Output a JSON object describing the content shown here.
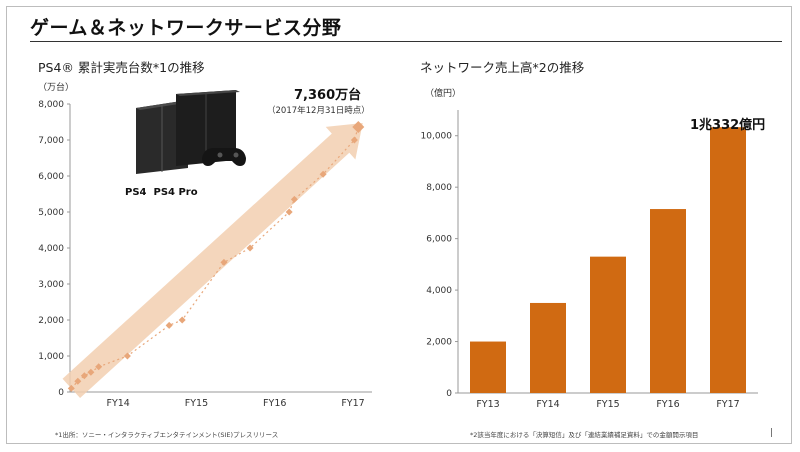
{
  "page": {
    "title": "ゲーム＆ネットワークサービス分野"
  },
  "left_chart": {
    "title": "PS4® 累計実売台数*1の推移",
    "unit": "（万台）",
    "annotation_value": "7,360万台",
    "annotation_date": "（2017年12月31日時点）",
    "footnote": "*1出所：ソニー・インタラクティブエンタテインメント(SIE)プレスリリース",
    "logos": [
      "PS4",
      "PS4 Pro"
    ]
  },
  "right_chart": {
    "title": "ネットワーク売上高*2の推移",
    "unit": "（億円）",
    "annotation_value": "1兆332億円",
    "footnote": "*2該当年度における「決算短信」及び「連結業績補足資料」での金額開示項目"
  },
  "colors": {
    "bar": "#d06a12",
    "arrow": "#f2cfb0",
    "points": "#e8a77a"
  },
  "chart_data": [
    {
      "type": "line",
      "title": "PS4® 累計実売台数*1の推移",
      "ylabel": "万台",
      "ylim": [
        0,
        8000
      ],
      "yticks": [
        0,
        1000,
        2000,
        3000,
        4000,
        5000,
        6000,
        7000,
        8000
      ],
      "ytick_labels": [
        "0",
        "1,000",
        "2,000",
        "3,000",
        "4,000",
        "5,000",
        "6,000",
        "7,000",
        "8,000"
      ],
      "xlim": [
        0,
        11
      ],
      "x_tick_positions": [
        2,
        5,
        8,
        11
      ],
      "categories": [
        "FY14",
        "FY15",
        "FY16",
        "FY17"
      ],
      "grid": false,
      "series": [
        {
          "values": [
            {
              "x": 0.05,
              "y": 100
            },
            {
              "x": 0.3,
              "y": 300
            },
            {
              "x": 0.55,
              "y": 450
            },
            {
              "x": 0.8,
              "y": 550
            },
            {
              "x": 1.1,
              "y": 700
            },
            {
              "x": 2.2,
              "y": 1000
            },
            {
              "x": 3.8,
              "y": 1850
            },
            {
              "x": 4.3,
              "y": 2000
            },
            {
              "x": 5.9,
              "y": 3600
            },
            {
              "x": 6.9,
              "y": 4000
            },
            {
              "x": 8.4,
              "y": 5000
            },
            {
              "x": 8.6,
              "y": 5350
            },
            {
              "x": 9.7,
              "y": 6050
            },
            {
              "x": 10.9,
              "y": 7000
            },
            {
              "x": 11.05,
              "y": 7360
            }
          ]
        }
      ]
    },
    {
      "type": "bar",
      "title": "ネットワーク売上高*2の推移",
      "ylabel": "億円",
      "ylim": [
        0,
        11000
      ],
      "yticks": [
        0,
        2000,
        4000,
        6000,
        8000,
        10000
      ],
      "ytick_labels": [
        "0",
        "2,000",
        "4,000",
        "6,000",
        "8,000",
        "10,000"
      ],
      "categories": [
        "FY13",
        "FY14",
        "FY15",
        "FY16",
        "FY17"
      ],
      "values": [
        2000,
        3500,
        5300,
        7150,
        10332
      ],
      "grid": false
    }
  ]
}
